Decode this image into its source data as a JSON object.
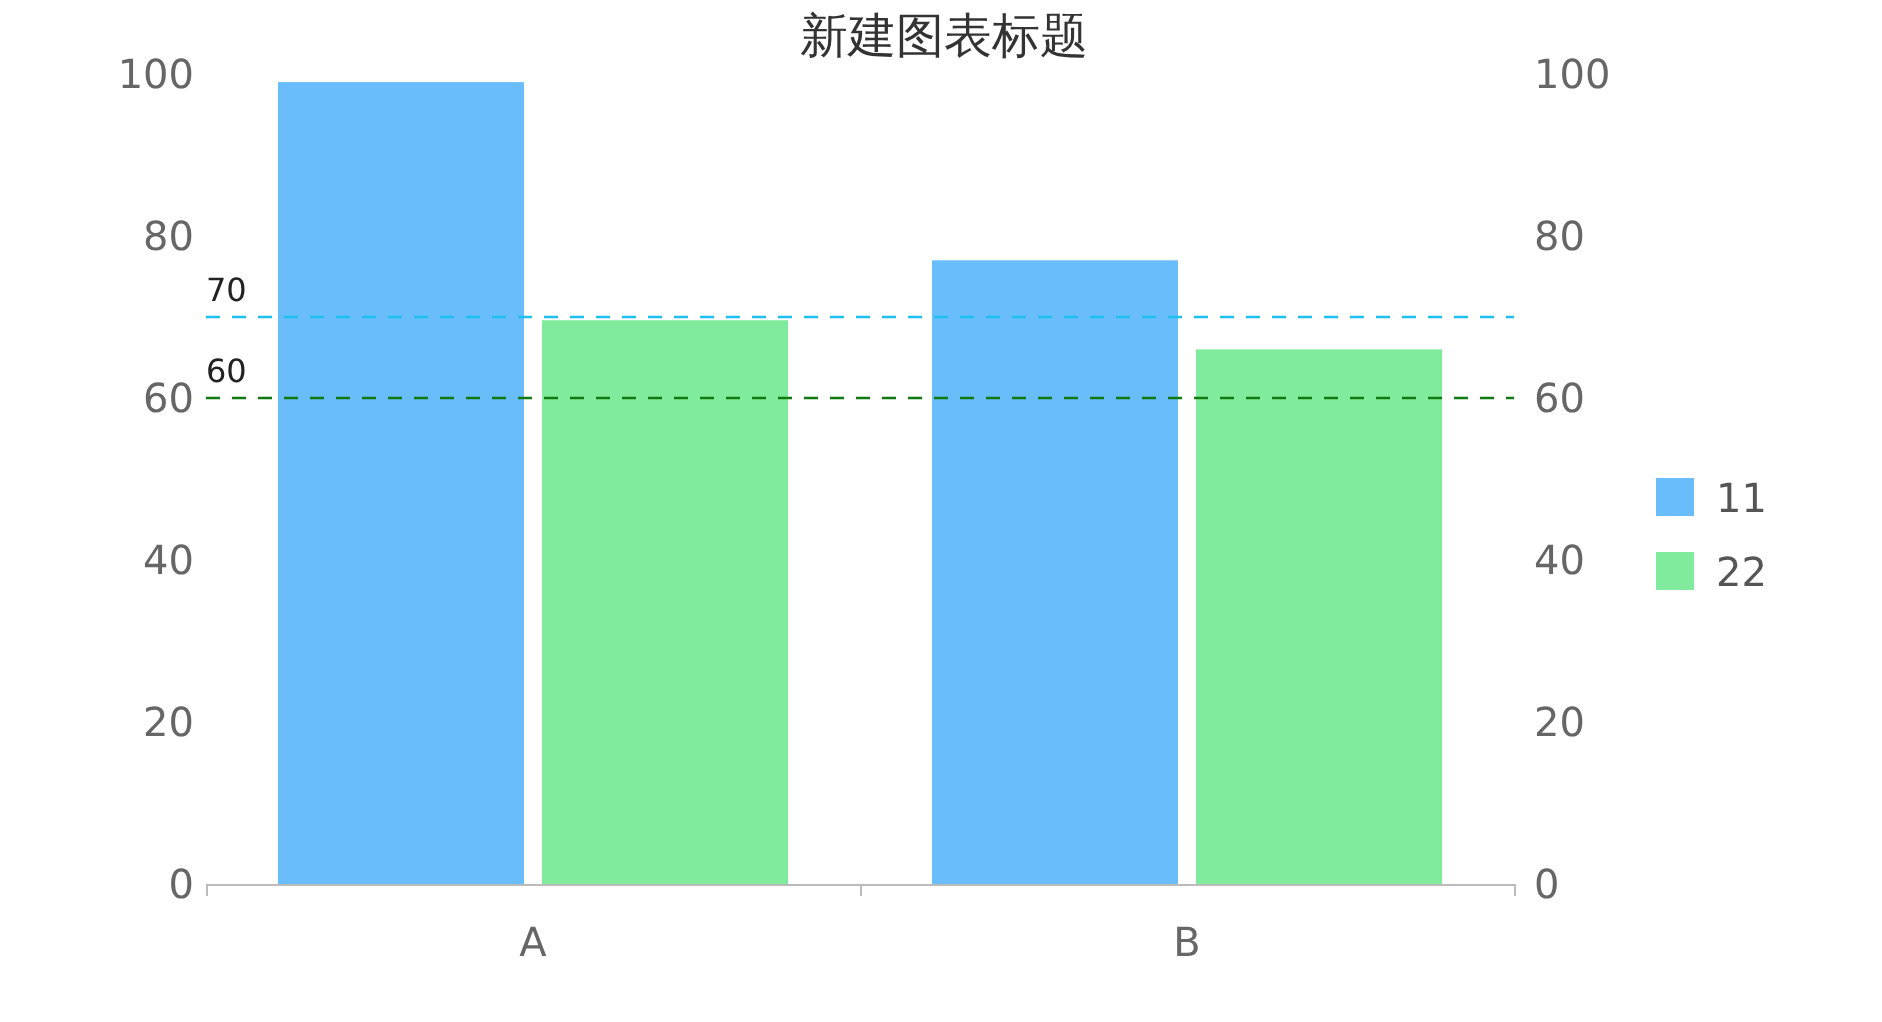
{
  "chart_data": {
    "type": "bar",
    "title": "新建图表标题",
    "categories": [
      "A",
      "B"
    ],
    "series": [
      {
        "name": "11",
        "color": "#69bdfb",
        "values": [
          99,
          77
        ]
      },
      {
        "name": "22",
        "color": "#80eb9c",
        "values": [
          69.6,
          66
        ]
      }
    ],
    "ylim": [
      0,
      100
    ],
    "yticks": [
      0,
      20,
      40,
      60,
      80,
      100
    ],
    "y2lim": [
      0,
      100
    ],
    "y2ticks": [
      0,
      20,
      40,
      60,
      80,
      100
    ],
    "ref_lines": [
      {
        "axis": "y",
        "value": 70,
        "label": "70",
        "color": "#1ec0f0",
        "line_style": "dashed"
      },
      {
        "axis": "y",
        "value": 60,
        "label": "60",
        "color": "#107a10",
        "line_style": "dashed"
      }
    ],
    "legend": "right"
  }
}
